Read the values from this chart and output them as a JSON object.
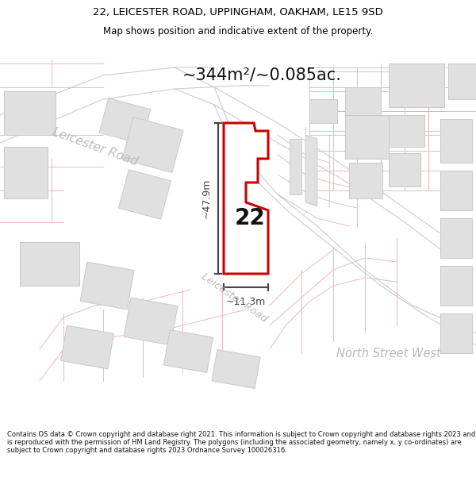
{
  "title_line1": "22, LEICESTER ROAD, UPPINGHAM, OAKHAM, LE15 9SD",
  "title_line2": "Map shows position and indicative extent of the property.",
  "area_text": "~344m²/~0.085ac.",
  "property_number": "22",
  "dim_height": "~47.9m",
  "dim_width": "~11.3m",
  "road_label1": "Leicester Road",
  "road_label2": "Leicester Road",
  "road_label3": "North Street West",
  "footer_text": "Contains OS data © Crown copyright and database right 2021. This information is subject to Crown copyright and database rights 2023 and is reproduced with the permission of HM Land Registry. The polygons (including the associated geometry, namely x, y co-ordinates) are subject to Crown copyright and database rights 2023 Ordnance Survey 100026316.",
  "bg_color": "#ffffff",
  "map_bg": "#ffffff",
  "parcel_color": "#e8b0b0",
  "property_fill": "#ffffff",
  "property_outline": "#cc0000",
  "building_fill": "#e0e0e0",
  "building_edge": "#c8c8c8",
  "dim_color": "#444444",
  "road_label_color": "#bbbbbb",
  "road_line_color": "#cccccc",
  "title_color": "#000000",
  "area_color": "#111111",
  "footer_color": "#111111"
}
